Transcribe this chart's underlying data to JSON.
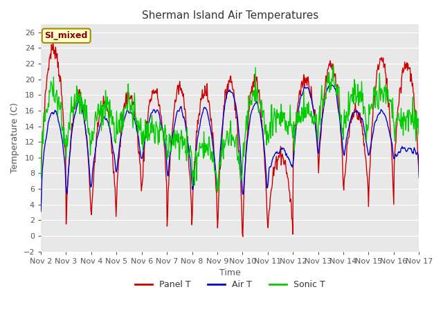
{
  "title": "Sherman Island Air Temperatures",
  "xlabel": "Time",
  "ylabel": "Temperature (C)",
  "annotation": "SI_mixed",
  "ylim": [
    -2,
    27
  ],
  "yticks": [
    -2,
    0,
    2,
    4,
    6,
    8,
    10,
    12,
    14,
    16,
    18,
    20,
    22,
    24,
    26
  ],
  "xtick_labels": [
    "Nov 2",
    "Nov 3",
    "Nov 4",
    "Nov 5",
    "Nov 6",
    "Nov 7",
    "Nov 8",
    "Nov 9",
    "Nov 10",
    "Nov 11",
    "Nov 12",
    "Nov 13",
    "Nov 14",
    "Nov 15",
    "Nov 16",
    "Nov 17"
  ],
  "panel_color": "#cc0000",
  "air_color": "#0000cc",
  "sonic_color": "#00cc00",
  "fig_bg": "#ffffff",
  "plot_bg": "#e8e8e8",
  "legend_labels": [
    "Panel T",
    "Air T",
    "Sonic T"
  ],
  "n_points": 720,
  "grid_color": "#ffffff",
  "annotation_bg": "#ffffcc",
  "annotation_border": "#aa8800"
}
